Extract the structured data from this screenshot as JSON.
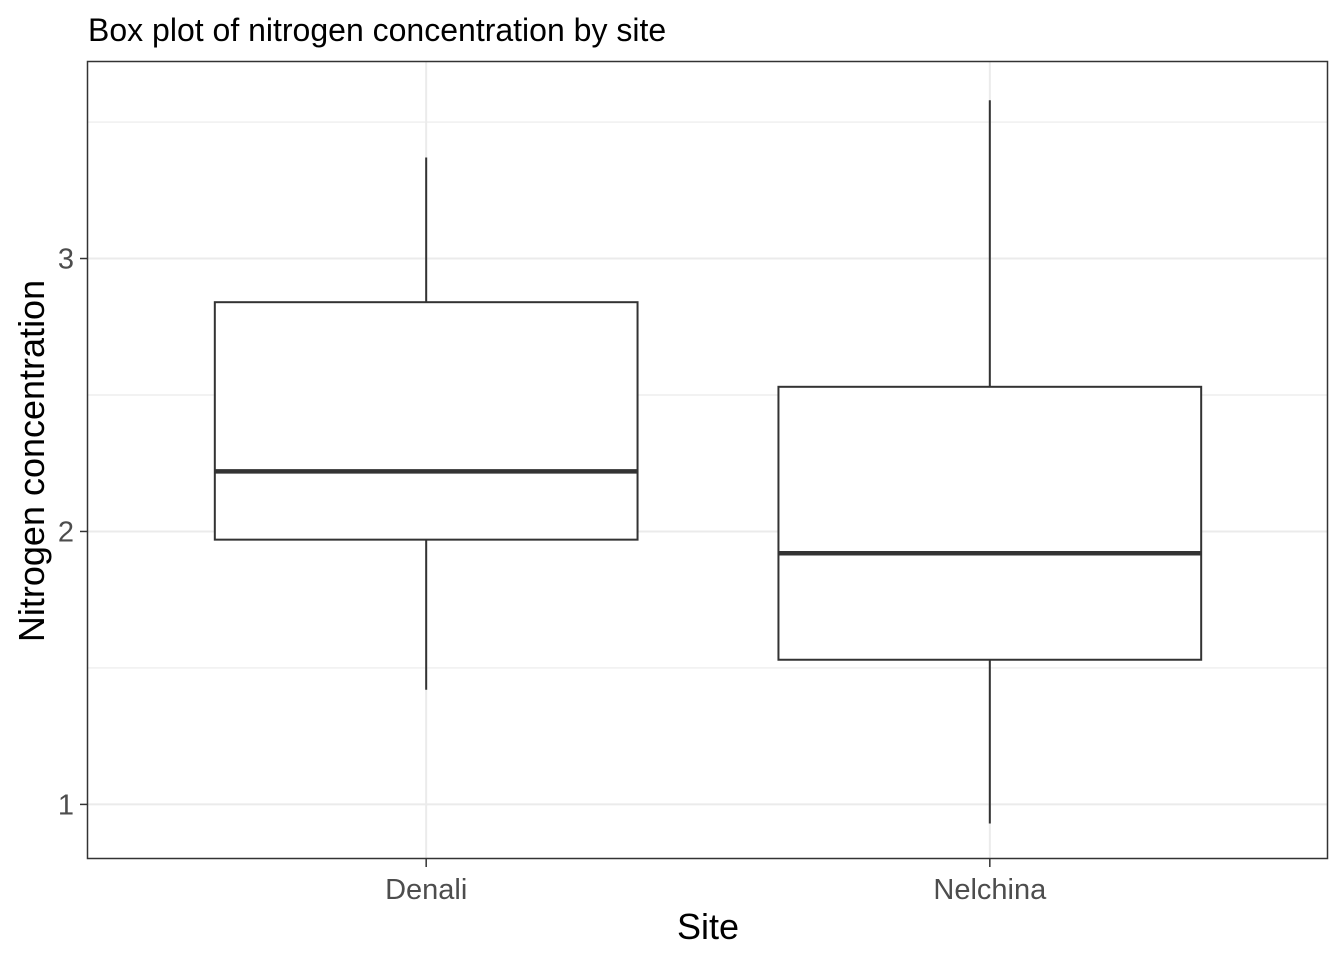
{
  "chart_data": {
    "type": "boxplot",
    "title": "Box plot of nitrogen concentration by site",
    "xlabel": "Site",
    "ylabel": "Nitrogen concentration",
    "categories": [
      "Denali",
      "Nelchina"
    ],
    "boxes": [
      {
        "category": "Denali",
        "min": 1.42,
        "q1": 1.97,
        "median": 2.22,
        "q3": 2.84,
        "max": 3.37
      },
      {
        "category": "Nelchina",
        "min": 0.93,
        "q1": 1.53,
        "median": 1.92,
        "q3": 2.53,
        "max": 3.58
      }
    ],
    "ylim": [
      0.8,
      3.72
    ],
    "yticks": [
      1,
      2,
      3
    ],
    "ytick_labels": [
      "1",
      "2",
      "3"
    ],
    "grid": true,
    "legend": "none",
    "colors": {
      "panel_border": "#333333",
      "grid": "#ebebeb",
      "box_stroke": "#333333",
      "box_fill": "#ffffff",
      "tick_label": "#4d4d4d"
    }
  }
}
